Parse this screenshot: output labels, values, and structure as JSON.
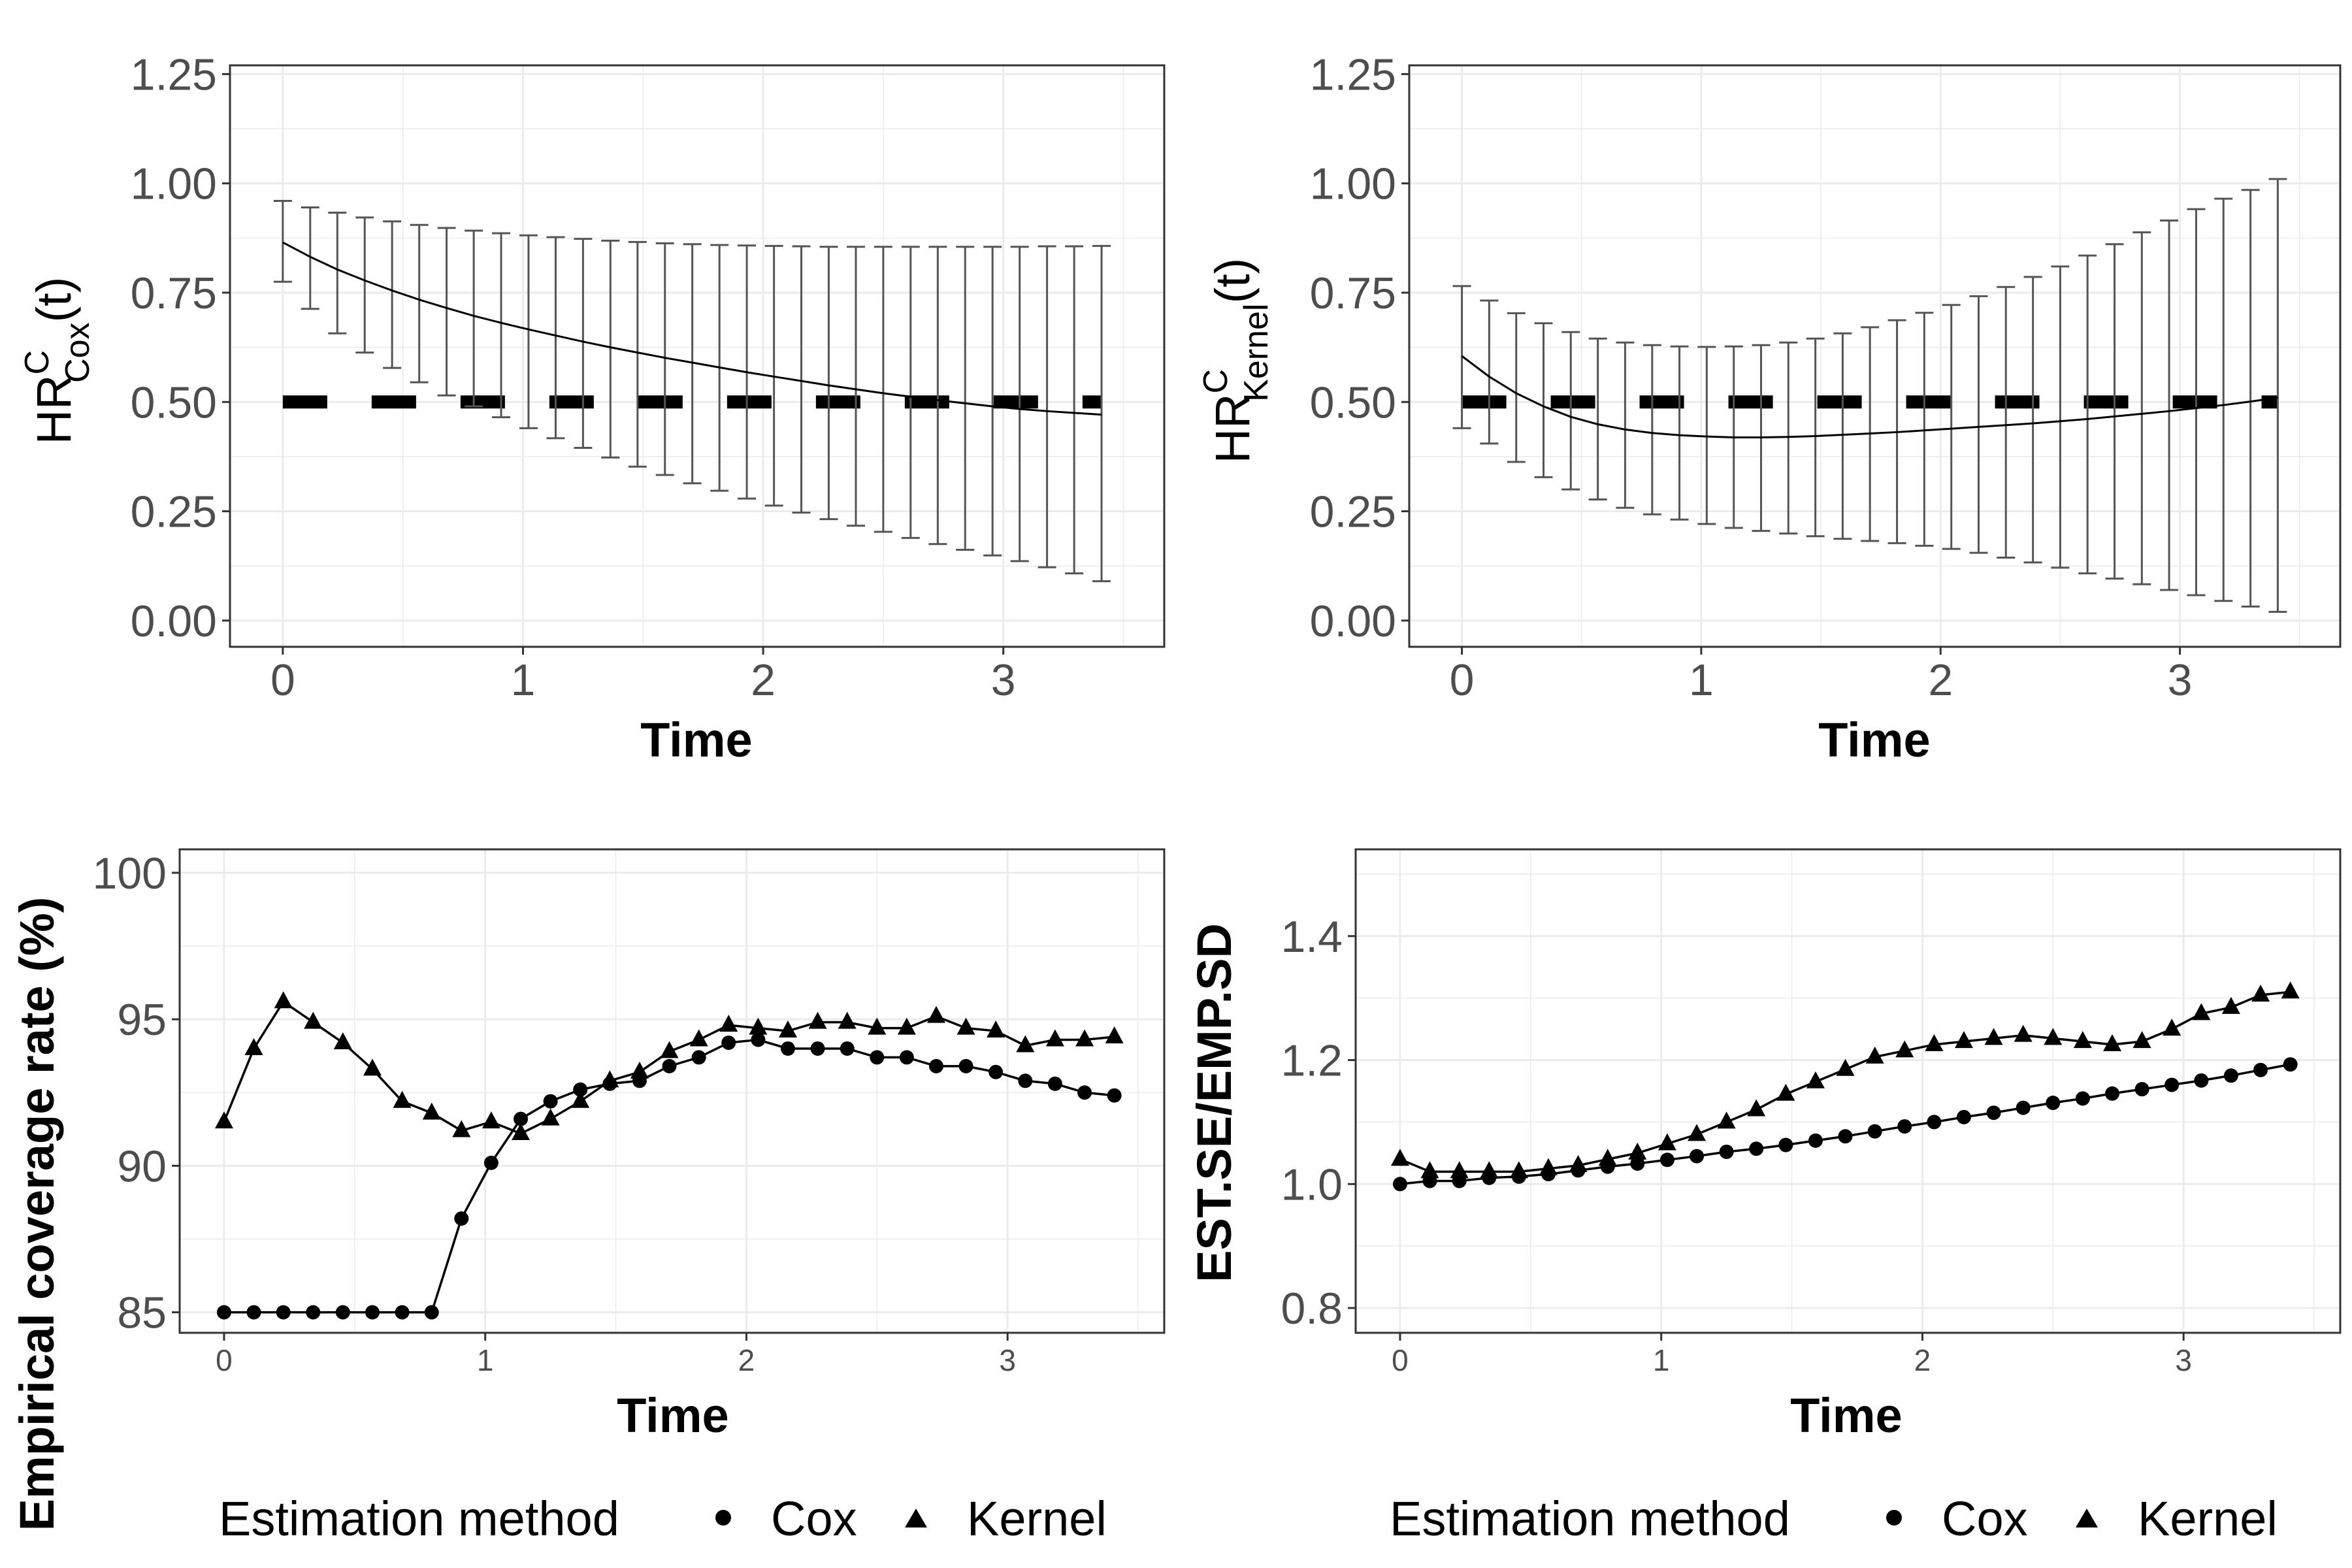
{
  "chart_data": [
    {
      "id": "p1",
      "type": "line",
      "xlabel": "Time",
      "ylabel": {
        "base": "HR",
        "sup": "C",
        "sub": "Cox",
        "suffix": "(t)"
      },
      "xlim": [
        -0.22,
        3.67
      ],
      "ylim": [
        -0.06,
        1.27
      ],
      "xticks": [
        0,
        1,
        2,
        3
      ],
      "xtick_labels": [
        "0",
        "1",
        "2",
        "3"
      ],
      "yticks": [
        0,
        0.25,
        0.5,
        0.75,
        1.0,
        1.25
      ],
      "ytick_labels": [
        "0.00",
        "0.25",
        "0.50",
        "0.75",
        "1.00",
        "1.25"
      ],
      "reference_line": 0.5,
      "x": [
        0,
        0.114,
        0.227,
        0.341,
        0.455,
        0.568,
        0.682,
        0.795,
        0.909,
        1.023,
        1.136,
        1.25,
        1.364,
        1.477,
        1.591,
        1.705,
        1.818,
        1.932,
        2.045,
        2.159,
        2.273,
        2.386,
        2.5,
        2.614,
        2.727,
        2.841,
        2.955,
        3.068,
        3.182,
        3.295,
        3.409
      ],
      "estimate": [
        0.865,
        0.832,
        0.803,
        0.778,
        0.755,
        0.734,
        0.715,
        0.697,
        0.681,
        0.666,
        0.652,
        0.638,
        0.625,
        0.613,
        0.601,
        0.59,
        0.579,
        0.568,
        0.558,
        0.548,
        0.538,
        0.529,
        0.52,
        0.512,
        0.504,
        0.497,
        0.49,
        0.484,
        0.479,
        0.475,
        0.471
      ],
      "upper": [
        0.96,
        0.945,
        0.933,
        0.922,
        0.913,
        0.905,
        0.898,
        0.892,
        0.886,
        0.881,
        0.877,
        0.873,
        0.869,
        0.866,
        0.863,
        0.861,
        0.859,
        0.858,
        0.857,
        0.856,
        0.855,
        0.855,
        0.855,
        0.855,
        0.855,
        0.855,
        0.855,
        0.855,
        0.856,
        0.856,
        0.857
      ],
      "lower": [
        0.775,
        0.713,
        0.657,
        0.613,
        0.578,
        0.545,
        0.515,
        0.49,
        0.465,
        0.44,
        0.417,
        0.395,
        0.373,
        0.352,
        0.333,
        0.314,
        0.297,
        0.279,
        0.263,
        0.247,
        0.232,
        0.217,
        0.203,
        0.189,
        0.175,
        0.162,
        0.149,
        0.136,
        0.122,
        0.108,
        0.09
      ]
    },
    {
      "id": "p2",
      "type": "line",
      "xlabel": "Time",
      "ylabel": {
        "base": "HR",
        "sup": "C",
        "sub": "Kernel",
        "suffix": "(t)"
      },
      "xlim": [
        -0.22,
        3.67
      ],
      "ylim": [
        -0.06,
        1.27
      ],
      "xticks": [
        0,
        1,
        2,
        3
      ],
      "xtick_labels": [
        "0",
        "1",
        "2",
        "3"
      ],
      "yticks": [
        0,
        0.25,
        0.5,
        0.75,
        1.0,
        1.25
      ],
      "ytick_labels": [
        "0.00",
        "0.25",
        "0.50",
        "0.75",
        "1.00",
        "1.25"
      ],
      "reference_line": 0.5,
      "x": [
        0,
        0.114,
        0.227,
        0.341,
        0.455,
        0.568,
        0.682,
        0.795,
        0.909,
        1.023,
        1.136,
        1.25,
        1.364,
        1.477,
        1.591,
        1.705,
        1.818,
        1.932,
        2.045,
        2.159,
        2.273,
        2.386,
        2.5,
        2.614,
        2.727,
        2.841,
        2.955,
        3.068,
        3.182,
        3.295,
        3.409
      ],
      "estimate": [
        0.605,
        0.558,
        0.52,
        0.49,
        0.466,
        0.449,
        0.437,
        0.429,
        0.424,
        0.421,
        0.419,
        0.419,
        0.42,
        0.422,
        0.425,
        0.428,
        0.431,
        0.435,
        0.439,
        0.443,
        0.447,
        0.451,
        0.456,
        0.461,
        0.467,
        0.473,
        0.479,
        0.486,
        0.493,
        0.501,
        0.51
      ],
      "upper": [
        0.765,
        0.732,
        0.703,
        0.68,
        0.66,
        0.645,
        0.636,
        0.63,
        0.627,
        0.626,
        0.627,
        0.63,
        0.636,
        0.645,
        0.657,
        0.671,
        0.687,
        0.704,
        0.722,
        0.742,
        0.763,
        0.786,
        0.81,
        0.835,
        0.861,
        0.888,
        0.915,
        0.941,
        0.965,
        0.985,
        1.01
      ],
      "lower": [
        0.44,
        0.405,
        0.363,
        0.328,
        0.3,
        0.277,
        0.258,
        0.243,
        0.231,
        0.221,
        0.212,
        0.205,
        0.199,
        0.193,
        0.187,
        0.182,
        0.177,
        0.171,
        0.164,
        0.155,
        0.144,
        0.133,
        0.121,
        0.108,
        0.096,
        0.083,
        0.07,
        0.058,
        0.045,
        0.032,
        0.02
      ]
    },
    {
      "id": "p3",
      "type": "line",
      "xlabel": "Time",
      "ylabel": "Empirical coverage rate (%)",
      "xlim": [
        -0.17,
        3.6
      ],
      "ylim": [
        84.3,
        100.8
      ],
      "xticks": [
        0,
        1,
        2,
        3
      ],
      "xtick_labels": [
        "0",
        "1",
        "2",
        "3"
      ],
      "yticks": [
        85,
        90,
        95,
        100
      ],
      "ytick_labels": [
        "85",
        "90",
        "95",
        "100"
      ],
      "x": [
        0,
        0.114,
        0.227,
        0.341,
        0.455,
        0.568,
        0.682,
        0.795,
        0.909,
        1.023,
        1.136,
        1.25,
        1.364,
        1.477,
        1.591,
        1.705,
        1.818,
        1.932,
        2.045,
        2.159,
        2.273,
        2.386,
        2.5,
        2.614,
        2.727,
        2.841,
        2.955,
        3.068,
        3.182,
        3.295,
        3.409
      ],
      "series": [
        {
          "name": "Cox",
          "marker": "circle",
          "values": [
            85.0,
            85.0,
            85.0,
            85.0,
            85.0,
            85.0,
            85.0,
            85.0,
            88.2,
            90.1,
            91.6,
            92.2,
            92.6,
            92.8,
            92.9,
            93.4,
            93.7,
            94.2,
            94.3,
            94.0,
            94.0,
            94.0,
            93.7,
            93.7,
            93.4,
            93.4,
            93.2,
            92.9,
            92.8,
            92.5,
            92.4
          ]
        },
        {
          "name": "Kernel",
          "marker": "triangle",
          "values": [
            91.5,
            94.0,
            95.6,
            94.9,
            94.2,
            93.3,
            92.2,
            91.8,
            91.2,
            91.5,
            91.1,
            91.6,
            92.2,
            92.9,
            93.2,
            93.9,
            94.3,
            94.8,
            94.7,
            94.6,
            94.9,
            94.9,
            94.7,
            94.7,
            95.1,
            94.7,
            94.6,
            94.1,
            94.3,
            94.3,
            94.4
          ]
        }
      ]
    },
    {
      "id": "p4",
      "type": "line",
      "xlabel": "Time",
      "ylabel": "EST.SE/EMP.SD",
      "xlim": [
        -0.17,
        3.6
      ],
      "ylim": [
        0.76,
        1.54
      ],
      "xticks": [
        0,
        1,
        2,
        3
      ],
      "xtick_labels": [
        "0",
        "1",
        "2",
        "3"
      ],
      "yticks": [
        0.8,
        1.0,
        1.2,
        1.4
      ],
      "ytick_labels": [
        "0.8",
        "1.0",
        "1.2",
        "1.4"
      ],
      "x": [
        0,
        0.114,
        0.227,
        0.341,
        0.455,
        0.568,
        0.682,
        0.795,
        0.909,
        1.023,
        1.136,
        1.25,
        1.364,
        1.477,
        1.591,
        1.705,
        1.818,
        1.932,
        2.045,
        2.159,
        2.273,
        2.386,
        2.5,
        2.614,
        2.727,
        2.841,
        2.955,
        3.068,
        3.182,
        3.295,
        3.409
      ],
      "series": [
        {
          "name": "Cox",
          "marker": "circle",
          "values": [
            1.0,
            1.005,
            1.005,
            1.01,
            1.012,
            1.016,
            1.022,
            1.028,
            1.033,
            1.039,
            1.045,
            1.052,
            1.057,
            1.063,
            1.07,
            1.077,
            1.085,
            1.093,
            1.1,
            1.108,
            1.115,
            1.123,
            1.131,
            1.138,
            1.146,
            1.153,
            1.16,
            1.167,
            1.175,
            1.184,
            1.193
          ]
        },
        {
          "name": "Kernel",
          "marker": "triangle",
          "values": [
            1.04,
            1.02,
            1.02,
            1.02,
            1.02,
            1.025,
            1.03,
            1.04,
            1.05,
            1.065,
            1.08,
            1.1,
            1.12,
            1.145,
            1.165,
            1.185,
            1.205,
            1.215,
            1.225,
            1.23,
            1.235,
            1.24,
            1.235,
            1.23,
            1.225,
            1.23,
            1.25,
            1.275,
            1.285,
            1.305,
            1.31
          ]
        }
      ]
    }
  ],
  "legends": [
    {
      "title": "Estimation method",
      "items": [
        {
          "label": "Cox",
          "marker": "circle"
        },
        {
          "label": "Kernel",
          "marker": "triangle"
        }
      ]
    },
    {
      "title": "Estimation method",
      "items": [
        {
          "label": "Cox",
          "marker": "circle"
        },
        {
          "label": "Kernel",
          "marker": "triangle"
        }
      ]
    }
  ]
}
